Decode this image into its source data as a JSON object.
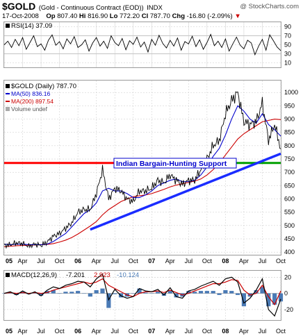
{
  "header": {
    "symbol": "$GOLD",
    "name": "(Gold - Continuous Contract (EOD))",
    "exchange": "INDX",
    "watermark": "@ StockCharts.com",
    "date": "17-Oct-2008",
    "op_label": "Op",
    "op": "807.40",
    "hi_label": "Hi",
    "hi": "816.90",
    "lo_label": "Lo",
    "lo": "772.20",
    "cl_label": "Cl",
    "cl": "787.70",
    "chg_label": "Chg",
    "chg": "-16.80 (-2.09%)",
    "chg_arrow": "▼"
  },
  "colors": {
    "price": "#000000",
    "ma50": "#0000cc",
    "ma200": "#cc0000",
    "trendline": "#1a2cff",
    "support_red": "#ff0000",
    "support_green": "#00a000",
    "macd": "#000000",
    "signal": "#cc0000",
    "histogram": "#4a7ab5",
    "grid": "#c8c8c8"
  },
  "chart_data": [
    {
      "type": "line",
      "panel": "rsi",
      "legend": "RSI(14) 37.09",
      "ylim": [
        0,
        100
      ],
      "y_ticks": [
        10,
        30,
        50,
        70,
        90
      ],
      "series": [
        {
          "name": "RSI(14)",
          "values": [
            50,
            58,
            44,
            62,
            48,
            66,
            40,
            55,
            70,
            46,
            52,
            38,
            60,
            72,
            49,
            57,
            41,
            63,
            52,
            68,
            44,
            50,
            61,
            36,
            54,
            66,
            47,
            58,
            42,
            70,
            55,
            48,
            64,
            39,
            59,
            51,
            67,
            45,
            56,
            34,
            62,
            49,
            71,
            53,
            43,
            60,
            47,
            65,
            38,
            57,
            52,
            69,
            46,
            61,
            40,
            55,
            73,
            48,
            58,
            44,
            63,
            36,
            52,
            67,
            49,
            41,
            60,
            54,
            28,
            47,
            62,
            38,
            72,
            59,
            45,
            37
          ]
        }
      ]
    },
    {
      "type": "line",
      "panel": "price",
      "title": "$GOLD (Daily) 787.70",
      "ylim": [
        390,
        1045
      ],
      "y_ticks": [
        400,
        450,
        500,
        550,
        600,
        650,
        700,
        750,
        800,
        850,
        900,
        950,
        1000
      ],
      "x_ticks": [
        "05",
        "Apr",
        "Jul",
        "Oct",
        "06",
        "Apr",
        "Jul",
        "Oct",
        "07",
        "Apr",
        "Jul",
        "Oct",
        "08",
        "Apr",
        "Jul",
        "Oct"
      ],
      "x_tick_years": [
        "05",
        "06",
        "07",
        "08"
      ],
      "legend": [
        {
          "label": "MA(50) 836.16",
          "key": "ma50"
        },
        {
          "label": "MA(200) 897.54",
          "key": "ma200"
        },
        {
          "label": "Volume undef",
          "key": "volume"
        }
      ],
      "annotation": "Indian Bargain-Hunting Support",
      "support_level": 735,
      "trendline": {
        "from": [
          "Mar-2006",
          485
        ],
        "to": [
          "Oct-2008",
          770
        ]
      },
      "x": [
        "Jan-05",
        "Feb-05",
        "Mar-05",
        "Apr-05",
        "May-05",
        "Jun-05",
        "Jul-05",
        "Aug-05",
        "Sep-05",
        "Oct-05",
        "Nov-05",
        "Dec-05",
        "Jan-06",
        "Feb-06",
        "Mar-06",
        "Apr-06",
        "May-06",
        "Jun-06",
        "Jul-06",
        "Aug-06",
        "Sep-06",
        "Oct-06",
        "Nov-06",
        "Dec-06",
        "Jan-07",
        "Feb-07",
        "Mar-07",
        "Apr-07",
        "May-07",
        "Jun-07",
        "Jul-07",
        "Aug-07",
        "Sep-07",
        "Oct-07",
        "Nov-07",
        "Dec-07",
        "Jan-08",
        "Feb-08",
        "Mar-08",
        "Apr-08",
        "May-08",
        "Jun-08",
        "Jul-08",
        "Aug-08",
        "Sep-08",
        "Oct-08"
      ],
      "series": [
        {
          "name": "$GOLD",
          "values": [
            425,
            428,
            435,
            432,
            422,
            430,
            425,
            438,
            460,
            470,
            490,
            510,
            550,
            560,
            560,
            620,
            710,
            600,
            640,
            630,
            600,
            590,
            630,
            630,
            640,
            670,
            660,
            690,
            670,
            655,
            670,
            670,
            710,
            750,
            800,
            820,
            920,
            970,
            1000,
            890,
            880,
            890,
            960,
            820,
            880,
            788
          ]
        },
        {
          "name": "MA(50)",
          "values": [
            430,
            428,
            430,
            430,
            428,
            428,
            428,
            430,
            440,
            455,
            470,
            495,
            520,
            545,
            560,
            585,
            630,
            640,
            630,
            630,
            620,
            605,
            605,
            615,
            630,
            650,
            660,
            670,
            675,
            665,
            665,
            670,
            690,
            720,
            760,
            790,
            840,
            900,
            950,
            930,
            900,
            885,
            920,
            880,
            860,
            836
          ]
        },
        {
          "name": "MA(200)",
          "values": [
            420,
            422,
            424,
            425,
            426,
            427,
            428,
            429,
            432,
            438,
            445,
            455,
            468,
            483,
            498,
            515,
            540,
            560,
            575,
            590,
            600,
            608,
            612,
            615,
            620,
            628,
            636,
            645,
            652,
            657,
            662,
            667,
            675,
            690,
            710,
            735,
            765,
            795,
            825,
            845,
            860,
            875,
            890,
            895,
            900,
            898
          ]
        }
      ]
    },
    {
      "type": "line",
      "panel": "macd",
      "legend": {
        "label": "MACD(12,26,9)",
        "macd": "-7.201",
        "signal": "2.923",
        "hist": "-10.124"
      },
      "ylim": [
        -33,
        28
      ],
      "y_ticks": [
        -20,
        0,
        20
      ],
      "x_ticks": [
        "05",
        "Apr",
        "Jul",
        "Oct",
        "06",
        "Apr",
        "Jul",
        "Oct",
        "07",
        "Apr",
        "Jul",
        "Oct",
        "08",
        "Apr",
        "Jul",
        "Oct"
      ],
      "x_tick_years": [
        "05",
        "06",
        "07",
        "08"
      ],
      "series": [
        {
          "name": "MACD",
          "values": [
            0,
            2,
            -2,
            3,
            -1,
            2,
            -3,
            4,
            8,
            6,
            10,
            12,
            15,
            14,
            8,
            18,
            24,
            -8,
            5,
            -3,
            -6,
            -4,
            6,
            3,
            2,
            5,
            -2,
            7,
            -4,
            -6,
            3,
            5,
            9,
            12,
            15,
            10,
            18,
            20,
            14,
            -12,
            -6,
            4,
            18,
            -20,
            -28,
            -7
          ]
        },
        {
          "name": "Signal",
          "values": [
            0,
            1,
            0,
            1,
            0,
            1,
            0,
            1,
            4,
            6,
            8,
            10,
            12,
            14,
            12,
            14,
            18,
            10,
            6,
            2,
            -2,
            -4,
            0,
            2,
            2,
            3,
            1,
            4,
            1,
            -2,
            0,
            3,
            6,
            9,
            12,
            12,
            14,
            17,
            16,
            4,
            -2,
            0,
            10,
            -4,
            -14,
            3
          ]
        },
        {
          "name": "Hist",
          "values": [
            0,
            1,
            -2,
            2,
            -1,
            1,
            -3,
            3,
            4,
            0,
            2,
            2,
            3,
            0,
            -4,
            4,
            6,
            -18,
            -1,
            -5,
            -4,
            0,
            6,
            1,
            0,
            2,
            -3,
            3,
            -5,
            -4,
            3,
            2,
            3,
            3,
            3,
            -2,
            4,
            3,
            -2,
            -16,
            -4,
            4,
            8,
            -16,
            -14,
            -10
          ]
        }
      ]
    }
  ]
}
